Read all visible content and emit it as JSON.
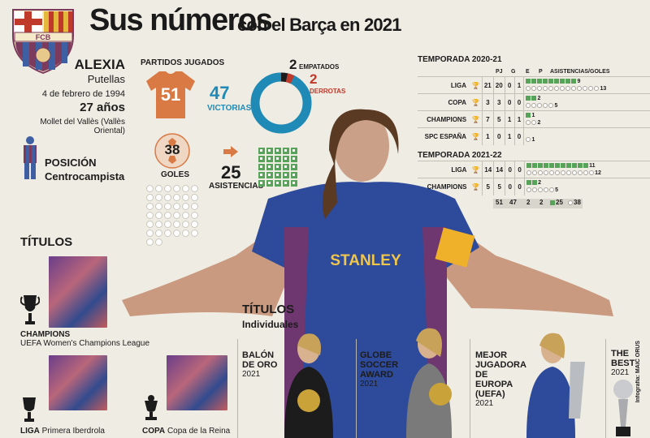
{
  "header": {
    "title_main": "Sus números",
    "title_sub": "con el Barça en 2021",
    "crest_text": "FCB"
  },
  "profile": {
    "first_name": "ALEXIA",
    "last_name": "Putellas",
    "birth_date": "4 de febrero de 1994",
    "age": "27 años",
    "birthplace": "Mollet del Vallès (Vallès Oriental)",
    "position_label": "POSICIÓN",
    "position_value": "Centrocampista"
  },
  "stats": {
    "played_label": "PARTIDOS JUGADOS",
    "played": "51",
    "wins": "47",
    "wins_label": "VICTORIAS",
    "draws": "2",
    "draws_label": "EMPATADOS",
    "losses": "2",
    "losses_label": "DERROTAS",
    "goals": "38",
    "goals_label": "GOLES",
    "assists": "25",
    "assists_label": "ASISTENCIAS"
  },
  "team_titles": {
    "heading": "TÍTULOS",
    "items": [
      {
        "bold": "CHAMPIONS",
        "text": "UEFA Women's Champions League"
      },
      {
        "bold": "LIGA",
        "text": "Primera Iberdrola"
      },
      {
        "bold": "COPA",
        "text": "Copa de la Reina"
      }
    ]
  },
  "individual": {
    "heading": "TÍTULOS",
    "subheading": "Individuales",
    "awards": [
      {
        "name": "BALÓN DE ORO",
        "year": "2021"
      },
      {
        "name": "GLOBE SOCCER AWARD",
        "year": "2021"
      },
      {
        "name": "MEJOR JUGADORA DE EUROPA (UEFA)",
        "year": "2021"
      },
      {
        "name": "THE BEST",
        "year": "2021"
      }
    ]
  },
  "table": {
    "season1": "TEMPORADA 2020-21",
    "season2": "TEMPORADA 2021-22",
    "headers": {
      "pj": "PJ",
      "g": "G",
      "e": "E",
      "p": "P",
      "ag": "ASISTENCIAS/GOLES"
    },
    "rows1": [
      {
        "comp": "LIGA",
        "pj": "21",
        "g": "20",
        "e": "0",
        "p": "1",
        "assists": 9,
        "goals": 13,
        "assists_label": "9",
        "goals_label": "13"
      },
      {
        "comp": "COPA",
        "pj": "3",
        "g": "3",
        "e": "0",
        "p": "0",
        "assists": 2,
        "goals": 5,
        "assists_label": "2",
        "goals_label": "5"
      },
      {
        "comp": "CHAMPIONS",
        "pj": "7",
        "g": "5",
        "e": "1",
        "p": "1",
        "assists": 1,
        "goals": 2,
        "assists_label": "1",
        "goals_label": "2"
      },
      {
        "comp": "SPC ESPAÑA",
        "pj": "1",
        "g": "0",
        "e": "1",
        "p": "0",
        "assists": 0,
        "goals": 1,
        "assists_label": "",
        "goals_label": "1"
      }
    ],
    "rows2": [
      {
        "comp": "LIGA",
        "pj": "14",
        "g": "14",
        "e": "0",
        "p": "0",
        "assists": 11,
        "goals": 12,
        "assists_label": "11",
        "goals_label": "12"
      },
      {
        "comp": "CHAMPIONS",
        "pj": "5",
        "g": "5",
        "e": "0",
        "p": "0",
        "assists": 2,
        "goals": 5,
        "assists_label": "2",
        "goals_label": "5"
      }
    ],
    "totals": {
      "pj": "51",
      "g": "47",
      "e": "2",
      "p": "2",
      "assists": "25",
      "goals": "38"
    }
  },
  "jersey_sponsor": "STANLEY",
  "credit": "Infografía: MAIC ORUS",
  "colors": {
    "blue": "#1f8ab5",
    "red": "#c03a2b",
    "green": "#58a35a",
    "shirt": "#d97a45"
  }
}
